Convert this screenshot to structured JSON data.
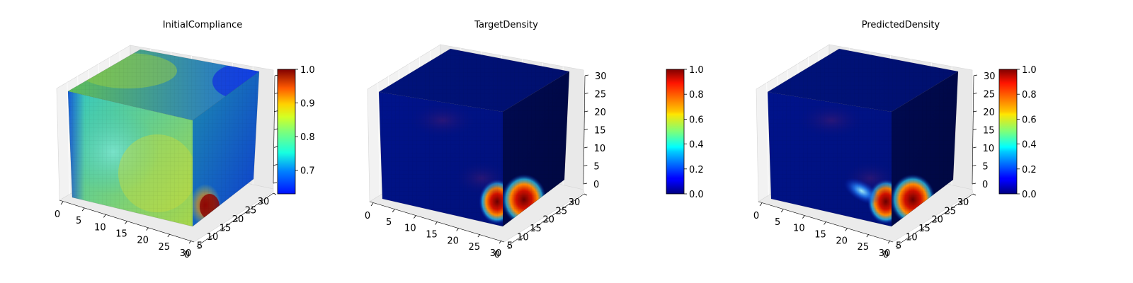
{
  "chart_data": [
    {
      "type": "3d-voxel",
      "title": "InitialCompliance",
      "x_ticks": [
        "0",
        "5",
        "10",
        "15",
        "20",
        "25",
        "30"
      ],
      "y_ticks": [
        "0",
        "5",
        "10",
        "15",
        "20",
        "25",
        "30"
      ],
      "z_ticks": [],
      "colorbar": {
        "range": [
          0.63,
          1.0
        ],
        "ticks": [
          "0.7",
          "0.8",
          "0.9",
          "1.0"
        ],
        "tick_values": [
          0.7,
          0.8,
          0.9,
          1.0
        ],
        "colormap": "jet"
      },
      "face_colors": {
        "top": [
          "#5fbf5a",
          "#1c6edc"
        ],
        "front": [
          "#33c9c2",
          "#a8d64a"
        ],
        "side": [
          "#1c8cb0",
          "#0d3ad0"
        ]
      }
    },
    {
      "type": "3d-voxel",
      "title": "TargetDensity",
      "x_ticks": [
        "0",
        "5",
        "10",
        "15",
        "20",
        "25",
        "30"
      ],
      "y_ticks": [
        "0",
        "5",
        "10",
        "15",
        "20",
        "25",
        "30"
      ],
      "z_ticks": [
        "0",
        "5",
        "10",
        "15",
        "20",
        "25",
        "30"
      ],
      "colorbar": {
        "range": [
          0.0,
          1.0
        ],
        "ticks": [
          "0.0",
          "0.2",
          "0.4",
          "0.6",
          "0.8",
          "1.0"
        ],
        "tick_values": [
          0.0,
          0.2,
          0.4,
          0.6,
          0.8,
          1.0
        ],
        "colormap": "jet"
      },
      "face_colors": {
        "top": [
          "#00137c",
          "#000f6e"
        ],
        "front": [
          "#00138c",
          "#00107a"
        ],
        "side": [
          "#000a52",
          "#00073f"
        ]
      }
    },
    {
      "type": "3d-voxel",
      "title": "PredictedDensity",
      "x_ticks": [
        "0",
        "5",
        "10",
        "15",
        "20",
        "25",
        "30"
      ],
      "y_ticks": [
        "0",
        "5",
        "10",
        "15",
        "20",
        "25",
        "30"
      ],
      "z_ticks": [
        "0",
        "5",
        "10",
        "15",
        "20",
        "25",
        "30"
      ],
      "colorbar": {
        "range": [
          0.0,
          1.0
        ],
        "ticks": [
          "0.0",
          "0.2",
          "0.4",
          "0.6",
          "0.8",
          "1.0"
        ],
        "tick_values": [
          0.0,
          0.2,
          0.4,
          0.6,
          0.8,
          1.0
        ],
        "colormap": "jet"
      },
      "face_colors": {
        "top": [
          "#00137c",
          "#000f6e"
        ],
        "front": [
          "#00138c",
          "#00107a"
        ],
        "side": [
          "#000a52",
          "#00073f"
        ]
      }
    }
  ]
}
